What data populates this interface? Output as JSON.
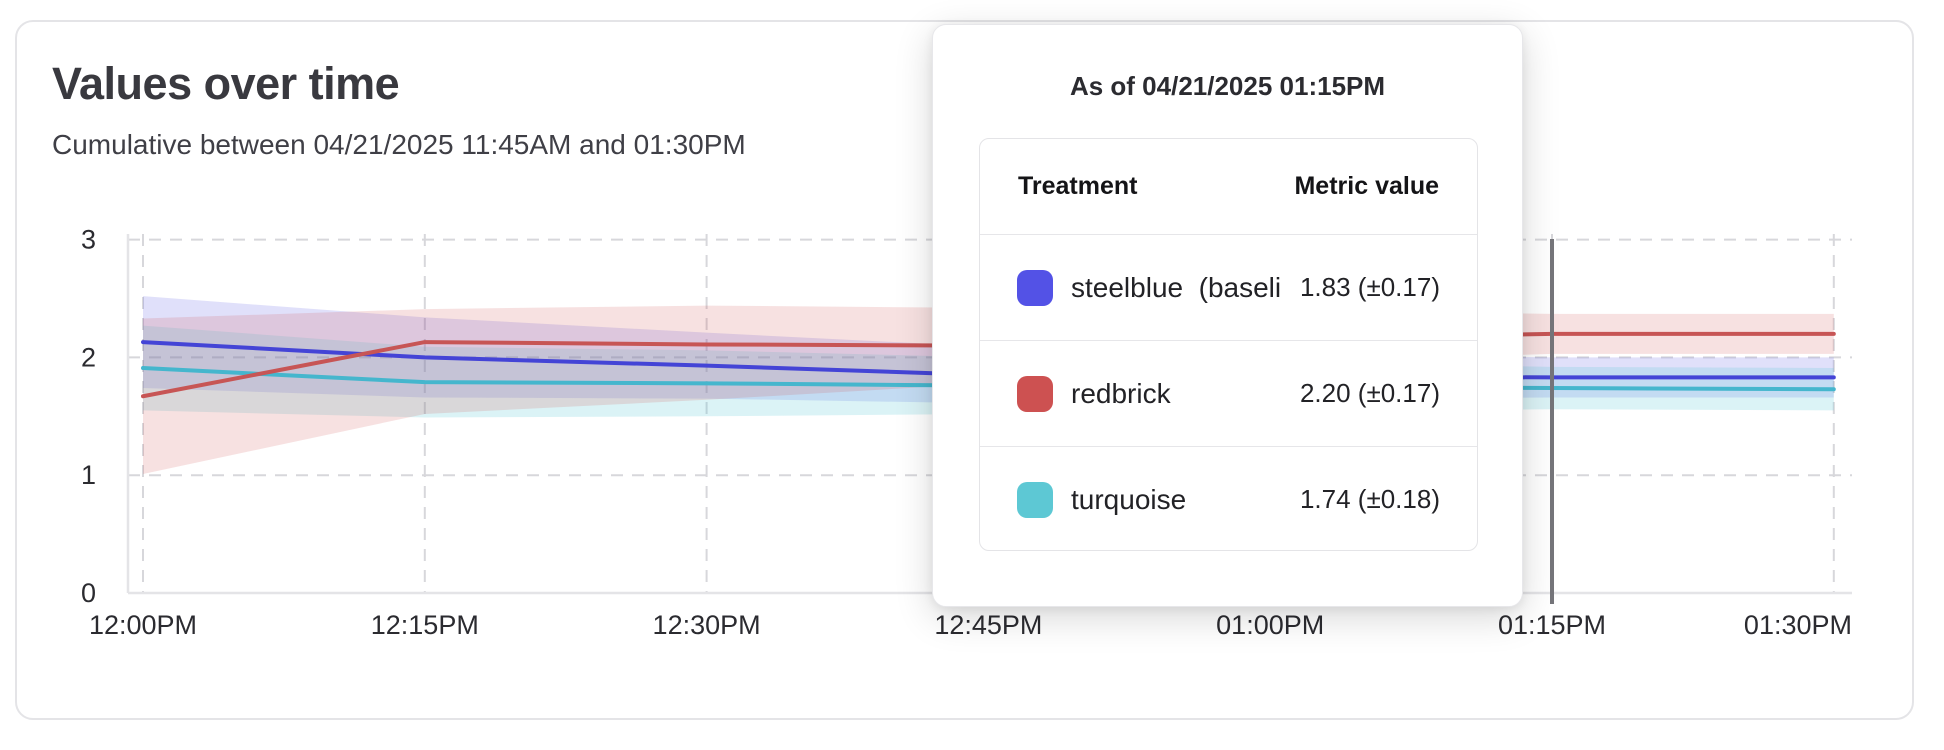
{
  "tooltip": {
    "heading": "As of 04/21/2025 01:15PM",
    "col_treatment": "Treatment",
    "col_metric": "Metric value",
    "rows": [
      {
        "label": "steelblue  (baseli",
        "swatch": "#5352e6",
        "value": "1.83 (±0.17)"
      },
      {
        "label": "redbrick",
        "swatch": "#cd5151",
        "value": "2.20 (±0.17)"
      },
      {
        "label": "turquoise",
        "swatch": "#5dc8d4",
        "value": "1.74 (±0.18)"
      }
    ]
  },
  "chart_data": {
    "type": "line",
    "title": "Values over time",
    "subtitle": "Cumulative between 04/21/2025 11:45AM and 01:30PM",
    "xlabel": "",
    "ylabel": "",
    "x_labels": [
      "12:00PM",
      "12:15PM",
      "12:30PM",
      "12:45PM",
      "01:00PM",
      "01:15PM",
      "01:30PM"
    ],
    "y_ticks": [
      0,
      1,
      2,
      3
    ],
    "ylim": [
      0,
      3.05
    ],
    "grid": "dashed",
    "legend_position": "tooltip-only",
    "hover_x_index": 5,
    "hover_x_label": "01:15PM",
    "hover_line_color": "#75757a",
    "series": [
      {
        "name": "steelblue (baseline)",
        "color": "#4444d6",
        "band_fill": "rgba(85,82,230,0.18)",
        "values": [
          2.13,
          2.0,
          1.93,
          1.85,
          1.84,
          1.83,
          1.83
        ],
        "upper": [
          2.52,
          2.34,
          2.21,
          2.09,
          2.03,
          2.0,
          2.0
        ],
        "lower": [
          1.74,
          1.66,
          1.65,
          1.61,
          1.65,
          1.66,
          1.66
        ]
      },
      {
        "name": "turquoise",
        "color": "#45b6cd",
        "band_fill": "rgba(93,200,212,0.22)",
        "values": [
          1.91,
          1.79,
          1.78,
          1.76,
          1.75,
          1.74,
          1.73
        ],
        "upper": [
          2.27,
          2.09,
          2.06,
          2.0,
          1.96,
          1.92,
          1.91
        ],
        "lower": [
          1.55,
          1.49,
          1.5,
          1.52,
          1.54,
          1.56,
          1.55
        ]
      },
      {
        "name": "redbrick",
        "color": "#c75555",
        "band_fill": "rgba(205,80,80,0.17)",
        "values": [
          1.67,
          2.13,
          2.11,
          2.1,
          2.15,
          2.2,
          2.2
        ],
        "upper": [
          2.33,
          2.41,
          2.44,
          2.42,
          2.4,
          2.37,
          2.37
        ],
        "lower": [
          1.01,
          1.52,
          1.64,
          1.78,
          1.95,
          2.03,
          2.03
        ]
      }
    ]
  }
}
